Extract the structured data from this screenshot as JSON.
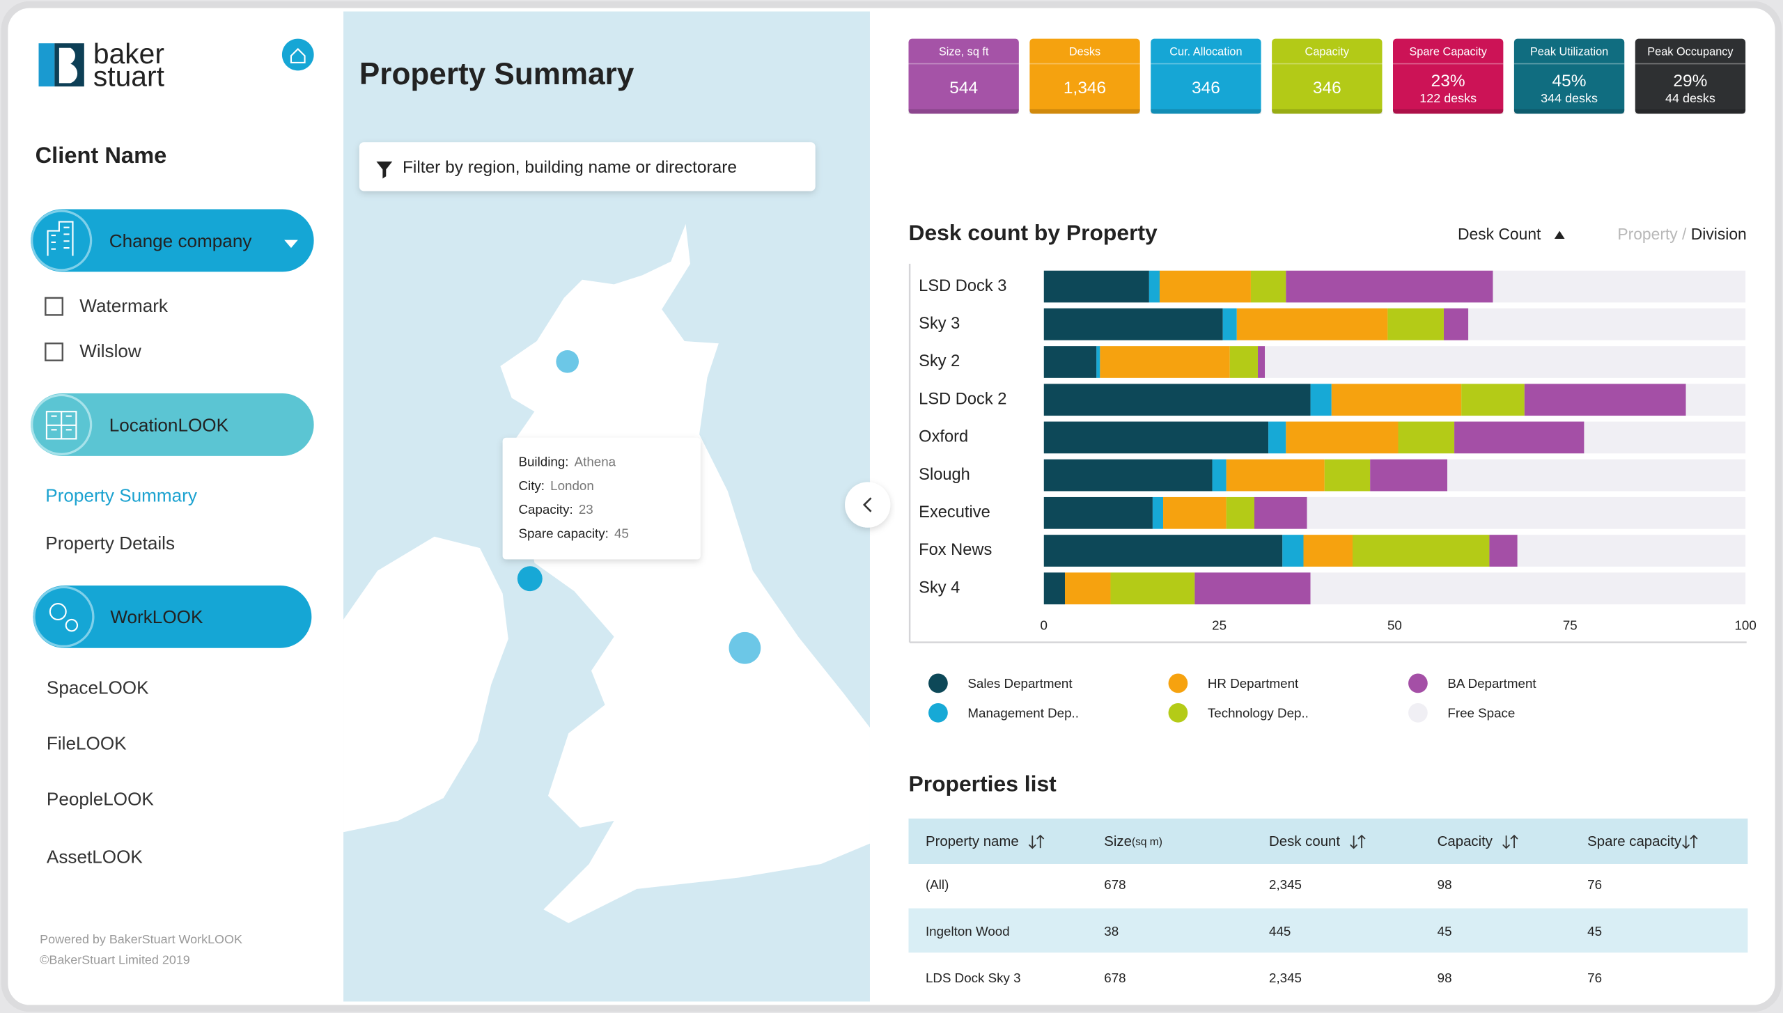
{
  "sidebar": {
    "logo": [
      "baker",
      "stuart"
    ],
    "client_name": "Client Name",
    "company_button": "Change company",
    "companies": [
      "Watermark",
      "Wilslow"
    ],
    "location_section": "LocationLOOK",
    "location_items": [
      "Property Summary",
      "Property Details"
    ],
    "work_section": "WorkLOOK",
    "work_items": [
      "SpaceLOOK",
      "FileLOOK",
      "PeopleLOOK",
      "AssetLOOK"
    ],
    "footer": [
      "Powered by BakerStuart WorkLOOK",
      "©BakerStuart Limited 2019"
    ]
  },
  "map": {
    "title": "Property Summary",
    "filter_placeholder": "Filter by region, building name or directorare",
    "tooltip": [
      {
        "label": "Building:",
        "value": "Athena"
      },
      {
        "label": "City:",
        "value": "London"
      },
      {
        "label": "Capacity:",
        "value": "23"
      },
      {
        "label": "Spare capacity:",
        "value": "45"
      }
    ]
  },
  "kpis": [
    {
      "label": "Size, sq ft",
      "value": "544",
      "color": "#a553a7"
    },
    {
      "label": "Desks",
      "value": "1,346",
      "color": "#f5a20f"
    },
    {
      "label": "Cur. Allocation",
      "value": "346",
      "color": "#16a6d5"
    },
    {
      "label": "Capacity",
      "value": "346",
      "color": "#b3ca17"
    },
    {
      "label": "Spare Capacity",
      "value": "23%",
      "sub": "122 desks",
      "color": "#cc1356"
    },
    {
      "label": "Peak Utilization",
      "value": "45%",
      "sub": "344 desks",
      "color": "#106d80"
    },
    {
      "label": "Peak Occupancy",
      "value": "29%",
      "sub": "44 desks",
      "color": "#2e3032"
    }
  ],
  "chart_data": {
    "type": "bar",
    "orientation": "horizontal",
    "stacked": true,
    "title": "Desk count by Property",
    "sort_label": "Desk Count",
    "breadcrumb": [
      "Property /",
      "Division"
    ],
    "categories": [
      "LSD Dock 3",
      "Sky 3",
      "Sky 2",
      "LSD Dock 2",
      "Oxford",
      "Slough",
      "Executive",
      "Fox News",
      "Sky 4"
    ],
    "series": [
      {
        "name": "Sales Department",
        "color": "#0d4858",
        "values": [
          15,
          25.5,
          7.5,
          38,
          32,
          24,
          15.5,
          34,
          3
        ]
      },
      {
        "name": "Management Dep..",
        "color": "#17a9d6",
        "values": [
          1.5,
          2,
          0.5,
          3,
          2.5,
          2,
          1.5,
          3,
          0
        ]
      },
      {
        "name": "HR Department",
        "color": "#f6a20f",
        "values": [
          13,
          21.5,
          18.5,
          18.5,
          16,
          14,
          9,
          7,
          6.5
        ]
      },
      {
        "name": "Technology Dep..",
        "color": "#b4cb17",
        "values": [
          5,
          8,
          4,
          9,
          8,
          6.5,
          4,
          19.5,
          12
        ]
      },
      {
        "name": "BA Department",
        "color": "#a44fa6",
        "values": [
          29.5,
          3.5,
          1,
          23,
          18.5,
          11,
          7.5,
          4,
          16.5
        ]
      },
      {
        "name": "Free Space",
        "color": "#f0eff4",
        "values": [
          36,
          39.5,
          68.5,
          8.5,
          23,
          42.5,
          62.5,
          32.5,
          62
        ]
      }
    ],
    "xlim": [
      0,
      100
    ],
    "xticks": [
      0,
      25,
      50,
      75,
      100
    ],
    "legend": "bottom"
  },
  "table": {
    "title": "Properties list",
    "columns": [
      {
        "label": "Property name"
      },
      {
        "label": "Size",
        "unit": "(sq m)"
      },
      {
        "label": "Desk count"
      },
      {
        "label": "Capacity"
      },
      {
        "label": "Spare capacity"
      }
    ],
    "rows": [
      [
        "(All)",
        "678",
        "2,345",
        "98",
        "76"
      ],
      [
        "Ingelton Wood",
        "38",
        "445",
        "45",
        "45"
      ],
      [
        "LDS Dock Sky 3",
        "678",
        "2,345",
        "98",
        "76"
      ]
    ]
  }
}
